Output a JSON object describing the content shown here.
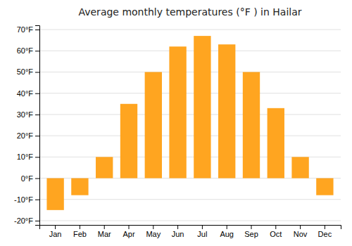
{
  "chart_data": {
    "type": "bar",
    "title": "Average monthly temperatures (°F ) in Hailar",
    "categories": [
      "Jan",
      "Feb",
      "Mar",
      "Apr",
      "May",
      "Jun",
      "Jul",
      "Aug",
      "Sep",
      "Oct",
      "Nov",
      "Dec"
    ],
    "values": [
      -15,
      -8,
      10,
      35,
      50,
      62,
      67,
      63,
      50,
      33,
      10,
      -8
    ],
    "color": "#FFA520",
    "ylim": [
      -22,
      72
    ],
    "yticks": [
      {
        "value": -20,
        "label": "-20°F"
      },
      {
        "value": -10,
        "label": "-10°F"
      },
      {
        "value": 0,
        "label": "0°F"
      },
      {
        "value": 10,
        "label": "10°F"
      },
      {
        "value": 20,
        "label": "20°F"
      },
      {
        "value": 30,
        "label": "30°F"
      },
      {
        "value": 40,
        "label": "40°F"
      },
      {
        "value": 50,
        "label": "50°F"
      },
      {
        "value": 60,
        "label": "60°F"
      },
      {
        "value": 70,
        "label": "70°F"
      }
    ],
    "grid": true
  }
}
